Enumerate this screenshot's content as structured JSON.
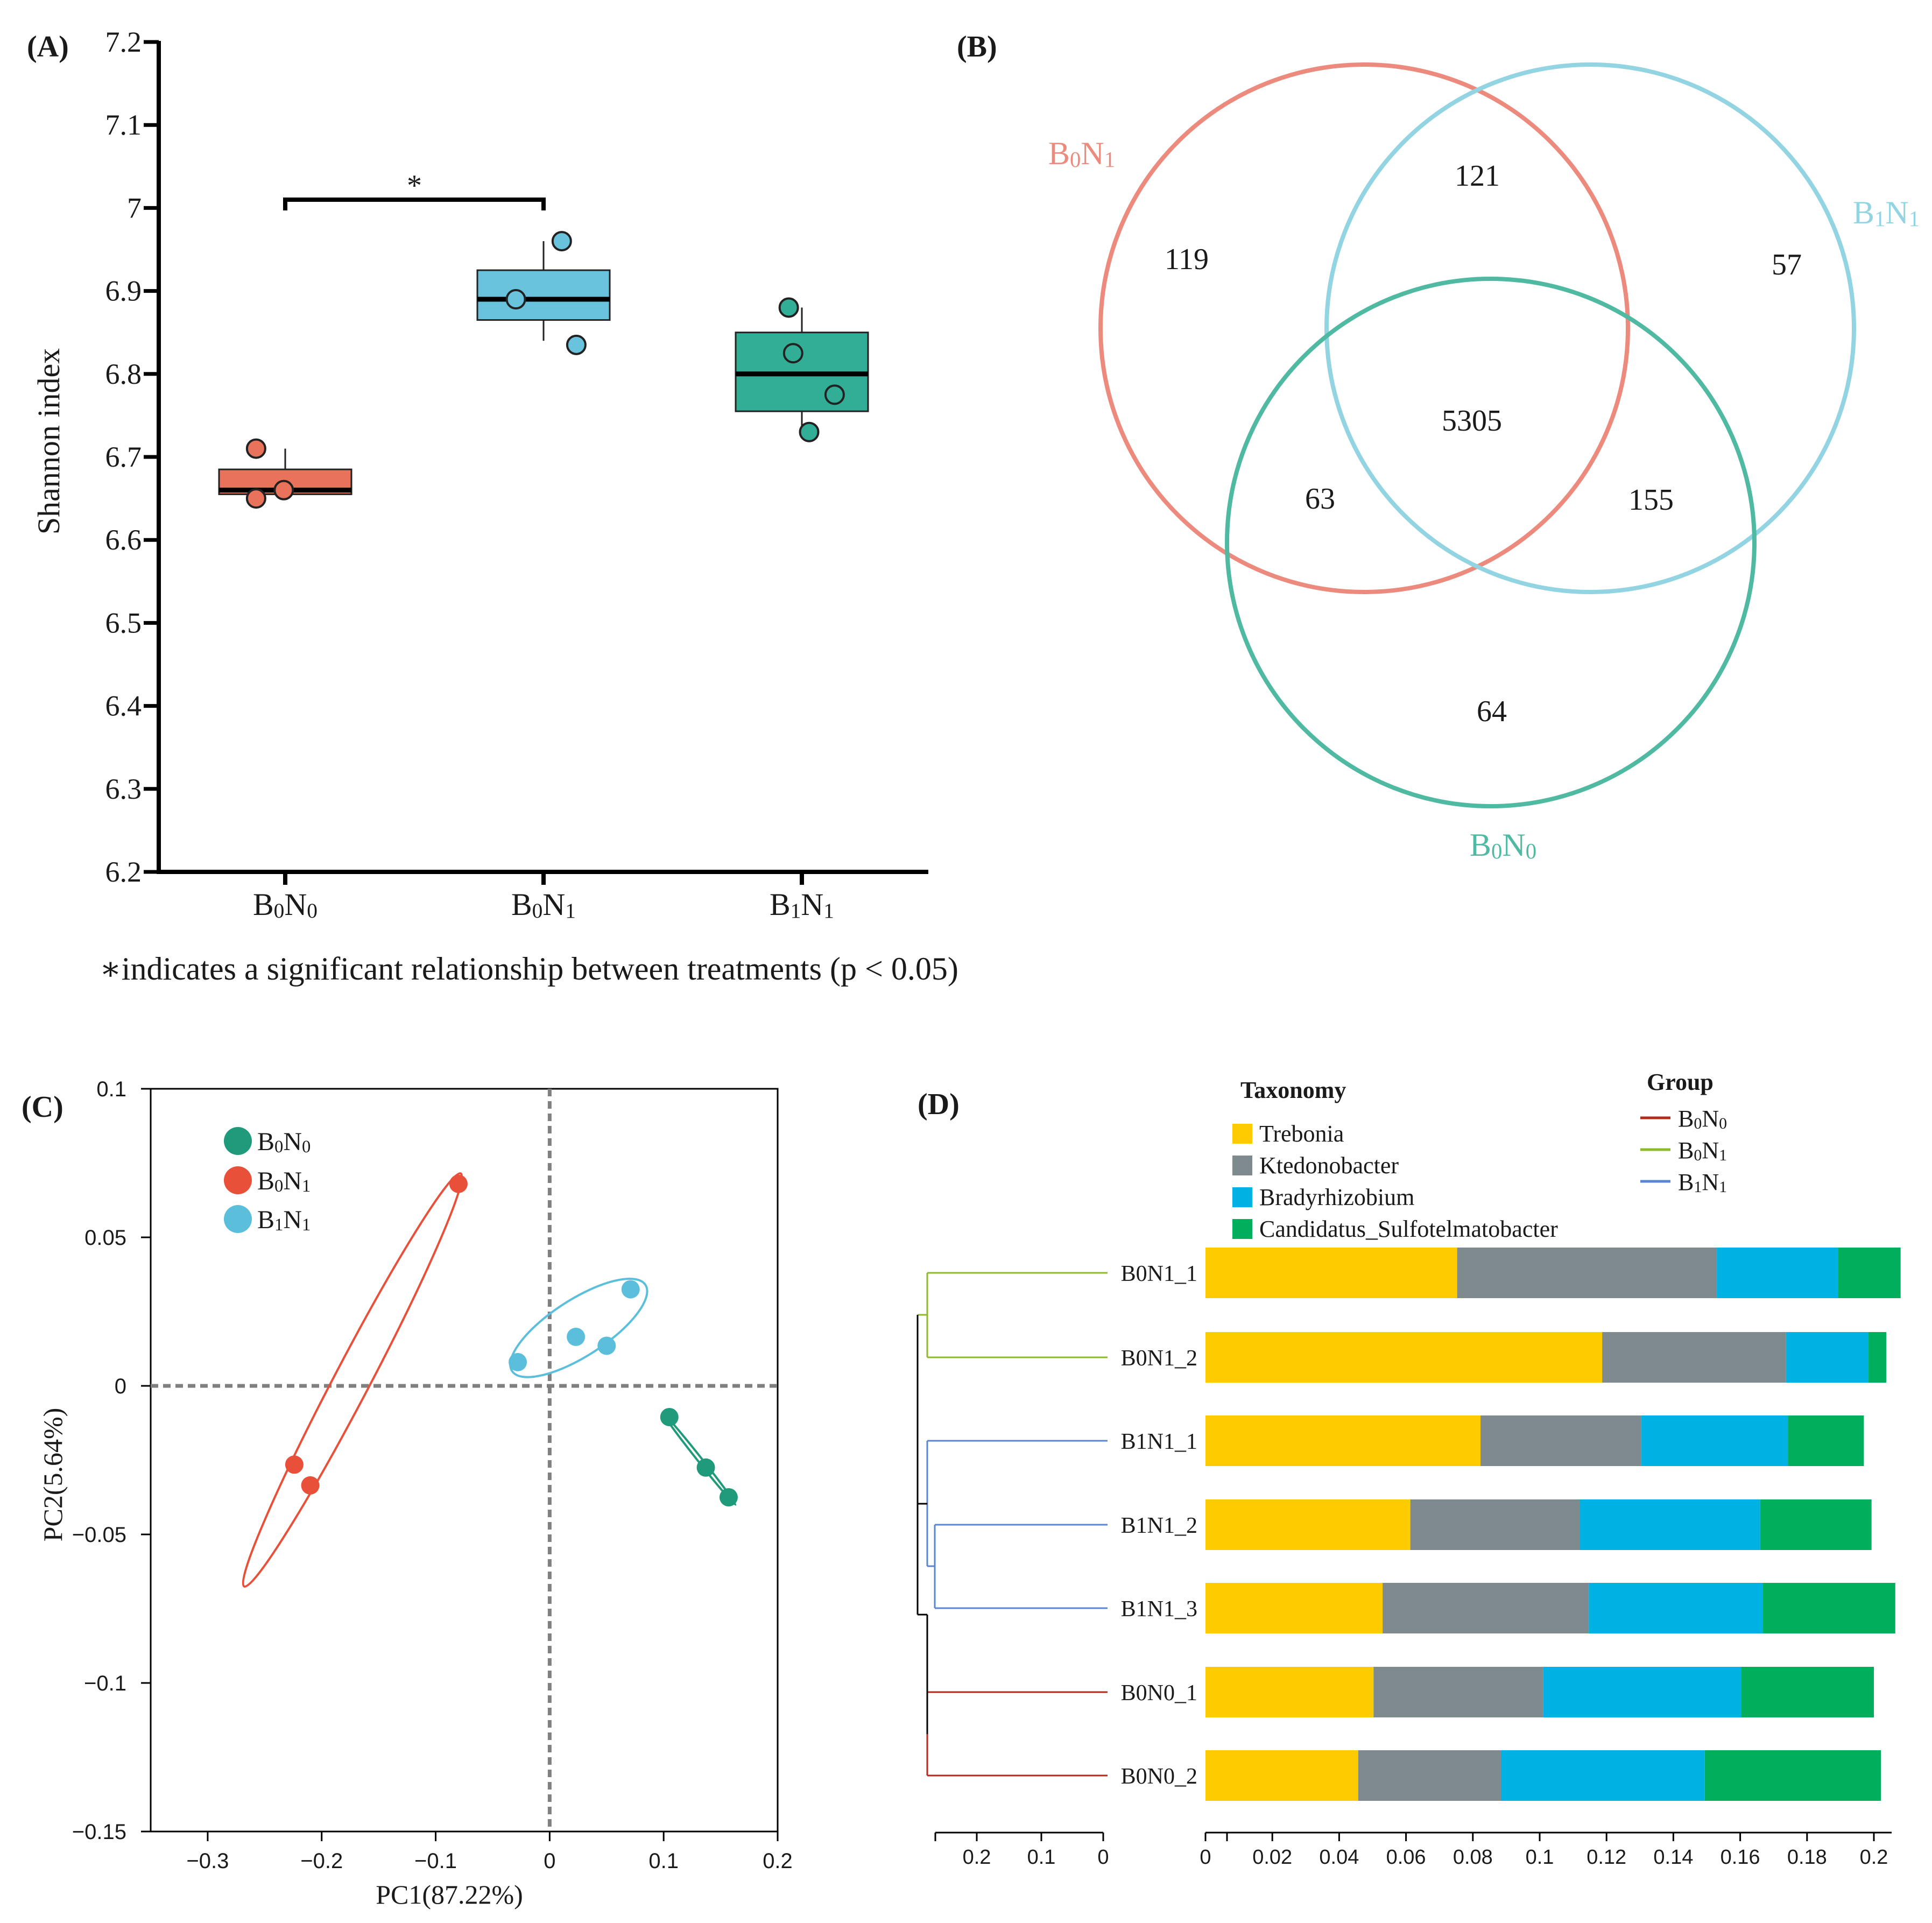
{
  "panels": {
    "A": {
      "label": "(A)",
      "chart_data": {
        "type": "box",
        "ylabel": "Shannon index",
        "ylim": [
          6.2,
          7.2
        ],
        "yticks": [
          "6.2",
          "6.3",
          "6.4",
          "6.5",
          "6.6",
          "6.7",
          "6.8",
          "6.9",
          "7",
          "7.1",
          "7.2"
        ],
        "groups": [
          {
            "name": "B0N0",
            "base": "B",
            "sub1": "0",
            "mid": "N",
            "sub2": "0",
            "color": "#e8735a",
            "whisker_low": 6.655,
            "q1": 6.655,
            "median": 6.66,
            "q3": 6.685,
            "whisker_high": 6.71,
            "points": [
              [
                -0.4,
                6.71
              ],
              [
                -0.4,
                6.65
              ],
              [
                -0.02,
                6.66
              ]
            ]
          },
          {
            "name": "B0N1",
            "base": "B",
            "sub1": "0",
            "mid": "N",
            "sub2": "1",
            "color": "#6ac3dc",
            "whisker_low": 6.84,
            "q1": 6.865,
            "median": 6.89,
            "q3": 6.925,
            "whisker_high": 6.96,
            "points": [
              [
                -0.38,
                6.89
              ],
              [
                0.25,
                6.96
              ],
              [
                0.45,
                6.835
              ]
            ]
          },
          {
            "name": "B1N1",
            "base": "B",
            "sub1": "1",
            "mid": "N",
            "sub2": "1",
            "color": "#33ae96",
            "whisker_low": 6.73,
            "q1": 6.755,
            "median": 6.8,
            "q3": 6.85,
            "whisker_high": 6.88,
            "points": [
              [
                -0.18,
                6.88
              ],
              [
                -0.12,
                6.825
              ],
              [
                0.1,
                6.73
              ],
              [
                0.45,
                6.775
              ]
            ]
          }
        ],
        "significance": {
          "from": 0,
          "to": 1,
          "symbol": "*",
          "y": 7.01
        },
        "footnote_symbol": "∗",
        "footnote": "indicates a significant relationship between treatments (p < 0.05)"
      }
    },
    "B": {
      "label": "(B)",
      "chart_data": {
        "type": "venn",
        "sets": [
          {
            "base": "B",
            "sub1": "0",
            "mid": "N",
            "sub2": "1",
            "color": "#ec8a7d"
          },
          {
            "base": "B",
            "sub1": "1",
            "mid": "N",
            "sub2": "1",
            "color": "#92d4e2"
          },
          {
            "base": "B",
            "sub1": "0",
            "mid": "N",
            "sub2": "0",
            "color": "#4fb9a2"
          }
        ],
        "counts": {
          "B0N1_only": "119",
          "B0N1_B1N1": "121",
          "B1N1_only": "57",
          "all_three": "5305",
          "B0N1_B0N0": "63",
          "B1N1_B0N0": "155",
          "B0N0_only": "64"
        }
      }
    },
    "C": {
      "label": "(C)",
      "chart_data": {
        "type": "scatter",
        "xlabel": "PC1(87.22%)",
        "ylabel": "PC2(5.64%)",
        "xlim": [
          -0.35,
          0.2
        ],
        "ylim": [
          -0.15,
          0.1
        ],
        "xticks": [
          "−0.3",
          "−0.2",
          "−0.1",
          "0",
          "0.1",
          "0.2"
        ],
        "xtick_values": [
          -0.3,
          -0.2,
          -0.1,
          0,
          0.1,
          0.2
        ],
        "yticks": [
          "−0.15",
          "−0.1",
          "−0.05",
          "0",
          "0.05",
          "0.1"
        ],
        "ytick_values": [
          -0.15,
          -0.1,
          -0.05,
          0,
          0.05,
          0.1
        ],
        "series": [
          {
            "name": "B0N0",
            "base": "B",
            "sub1": "0",
            "mid": "N",
            "sub2": "0",
            "color": "#1f9a7a",
            "points": [
              [
                0.105,
                -0.0105
              ],
              [
                0.137,
                -0.0275
              ],
              [
                0.157,
                -0.0375
              ]
            ],
            "ellipse": {
              "center": [
                0.132,
                -0.025
              ],
              "endA": [
                0.1,
                -0.0095
              ],
              "endB": [
                0.163,
                -0.04
              ],
              "semi_minor": 0.0005
            }
          },
          {
            "name": "B0N1",
            "base": "B",
            "sub1": "0",
            "mid": "N",
            "sub2": "1",
            "color": "#e8503a",
            "points": [
              [
                -0.08,
                0.068
              ],
              [
                -0.224,
                -0.0265
              ],
              [
                -0.21,
                -0.0335
              ]
            ],
            "ellipse": {
              "center": [
                -0.17,
                0.0
              ],
              "endA": [
                -0.078,
                0.0715
              ],
              "endB": [
                -0.268,
                -0.0675
              ],
              "semi_minor": 0.006
            }
          },
          {
            "name": "B1N1",
            "base": "B",
            "sub1": "1",
            "mid": "N",
            "sub2": "1",
            "color": "#5bbfdb",
            "points": [
              [
                -0.028,
                0.008
              ],
              [
                0.023,
                0.0165
              ],
              [
                0.05,
                0.0135
              ],
              [
                0.071,
                0.0325
              ]
            ],
            "ellipse": {
              "center": [
                0.022,
                0.0195
              ],
              "endA": [
                -0.033,
                0.005
              ],
              "endB": [
                0.084,
                0.034
              ],
              "semi_minor": 0.0095
            }
          }
        ]
      }
    },
    "D": {
      "label": "(D)",
      "taxonomy_title": "Taxonomy",
      "group_title": "Group",
      "taxa": [
        {
          "name": "Trebonia",
          "color": "#fdcb00"
        },
        {
          "name": "Ktedonobacter",
          "color": "#7f8a8e"
        },
        {
          "name": "Bradyrhizobium",
          "color": "#00b2e4"
        },
        {
          "name": "Candidatus_Sulfotelmatobacter",
          "color": "#00ae5c"
        }
      ],
      "groups": [
        {
          "base": "B",
          "sub1": "0",
          "mid": "N",
          "sub2": "0",
          "color": "#b22a1a"
        },
        {
          "base": "B",
          "sub1": "0",
          "mid": "N",
          "sub2": "1",
          "color": "#8dbb2a"
        },
        {
          "base": "B",
          "sub1": "1",
          "mid": "N",
          "sub2": "1",
          "color": "#5b84d1"
        }
      ],
      "chart_data": {
        "type": "stacked_bar_horizontal",
        "xlim": [
          0,
          0.2
        ],
        "xticks": [
          "0",
          "0.02",
          "0.04",
          "0.06",
          "0.08",
          "0.1",
          "0.12",
          "0.14",
          "0.16",
          "0.18",
          "0.2"
        ],
        "tree_ticks": [
          "0.2",
          "0.1",
          "0"
        ],
        "samples": [
          {
            "name": "B0N1_1",
            "group": 1,
            "values": [
              0.0753,
              0.0777,
              0.0363,
              0.0187
            ]
          },
          {
            "name": "B0N1_2",
            "group": 1,
            "values": [
              0.1187,
              0.055,
              0.0247,
              0.0053
            ]
          },
          {
            "name": "B1N1_1",
            "group": 2,
            "values": [
              0.0823,
              0.048,
              0.044,
              0.0227
            ]
          },
          {
            "name": "B1N1_2",
            "group": 2,
            "values": [
              0.0613,
              0.0507,
              0.054,
              0.0333
            ]
          },
          {
            "name": "B1N1_3",
            "group": 2,
            "values": [
              0.053,
              0.0617,
              0.052,
              0.0397
            ]
          },
          {
            "name": "B0N0_1",
            "group": 0,
            "values": [
              0.0503,
              0.0507,
              0.0593,
              0.0397
            ]
          },
          {
            "name": "B0N0_2",
            "group": 0,
            "values": [
              0.0457,
              0.0427,
              0.061,
              0.0527
            ]
          }
        ]
      }
    }
  }
}
